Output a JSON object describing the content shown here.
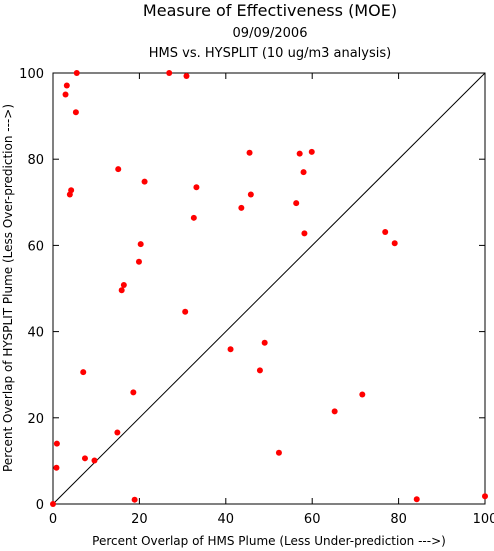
{
  "chart_data": {
    "type": "scatter",
    "title": "Measure of Effectiveness (MOE)",
    "subtitle": "09/09/2006",
    "subtitle2": "HMS vs. HYSPLIT  (10 ug/m3 analysis)",
    "xlabel": "Percent Overlap of HMS Plume (Less Under-prediction --->)",
    "ylabel": "Percent Overlap of HYSPLIT Plume (Less Over-prediction --->)",
    "xlim": [
      0,
      100
    ],
    "ylim": [
      0,
      100
    ],
    "xticks": [
      0,
      20,
      40,
      60,
      80,
      100
    ],
    "yticks": [
      0,
      20,
      40,
      60,
      80,
      100
    ],
    "diagonal": true,
    "grid": false,
    "point_color": "#ff0000",
    "x": [
      0.0,
      0.8,
      0.9,
      2.9,
      3.2,
      3.9,
      4.2,
      5.3,
      5.5,
      7.0,
      7.4,
      9.6,
      14.9,
      15.1,
      15.9,
      16.4,
      18.6,
      18.9,
      19.9,
      20.3,
      21.2,
      26.9,
      30.6,
      30.9,
      32.6,
      33.2,
      41.1,
      43.6,
      45.5,
      45.8,
      47.9,
      49.0,
      52.3,
      56.3,
      57.1,
      58.0,
      58.2,
      59.9,
      65.2,
      71.6,
      76.9,
      79.1,
      84.2,
      100.0
    ],
    "y": [
      0.0,
      8.4,
      14.0,
      95.0,
      97.1,
      71.8,
      72.8,
      90.9,
      100.0,
      30.6,
      10.6,
      10.1,
      16.6,
      77.7,
      49.6,
      50.8,
      25.9,
      1.0,
      56.2,
      60.3,
      74.8,
      100.0,
      44.6,
      99.3,
      66.4,
      73.5,
      35.9,
      68.7,
      81.5,
      71.8,
      31.0,
      37.4,
      11.9,
      69.8,
      81.3,
      77.0,
      62.8,
      81.7,
      21.5,
      25.4,
      63.1,
      60.5,
      1.1,
      1.8
    ]
  }
}
